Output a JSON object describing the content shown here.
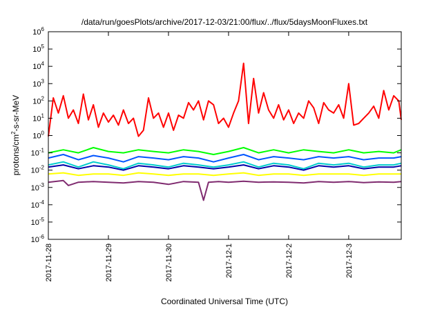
{
  "chart_data": {
    "type": "line",
    "title": "/data/run/goesPlots/archive/2017-12-03/21:00/flux/../flux/5daysMoonFluxes.txt",
    "xlabel": "Coordinated Universal Time (UTC)",
    "ylabel_parts": [
      "protons/cm",
      "2",
      "-s-sr-MeV"
    ],
    "yscale": "log",
    "ylim": [
      1e-06,
      1000000.0
    ],
    "xlim": [
      "2017-11-28T00:00",
      "2017-12-03T21:00"
    ],
    "grid": false,
    "legend": "none",
    "x_tick_labels": [
      "2017-11-28",
      "2017-11-29",
      "2017-11-30",
      "2017-12-1",
      "2017-12-2",
      "2017-12-3"
    ],
    "y_ticks": [
      {
        "value": 1e-06,
        "base": "10",
        "exp": "-6"
      },
      {
        "value": 1e-05,
        "base": "10",
        "exp": "-5"
      },
      {
        "value": 0.0001,
        "base": "10",
        "exp": "-4"
      },
      {
        "value": 0.001,
        "base": "10",
        "exp": "-3"
      },
      {
        "value": 0.01,
        "base": "10",
        "exp": "-2"
      },
      {
        "value": 0.1,
        "base": "10",
        "exp": "-1"
      },
      {
        "value": 1,
        "base": "10",
        "exp": "0"
      },
      {
        "value": 10,
        "base": "10",
        "exp": "1"
      },
      {
        "value": 100,
        "base": "10",
        "exp": "2"
      },
      {
        "value": 1000,
        "base": "10",
        "exp": "3"
      },
      {
        "value": 10000,
        "base": "10",
        "exp": "4"
      },
      {
        "value": 100000,
        "base": "10",
        "exp": "5"
      },
      {
        "value": 1000000,
        "base": "10",
        "exp": "6"
      }
    ],
    "series": [
      {
        "color": "#ff0000",
        "points": [
          [
            "2017-11-28T00:00",
            0.9
          ],
          [
            "2017-11-28T02:00",
            150
          ],
          [
            "2017-11-28T04:00",
            20
          ],
          [
            "2017-11-28T06:00",
            200
          ],
          [
            "2017-11-28T08:00",
            10
          ],
          [
            "2017-11-28T10:00",
            30
          ],
          [
            "2017-11-28T12:00",
            5
          ],
          [
            "2017-11-28T14:00",
            250
          ],
          [
            "2017-11-28T16:00",
            8
          ],
          [
            "2017-11-28T18:00",
            60
          ],
          [
            "2017-11-28T20:00",
            3
          ],
          [
            "2017-11-28T22:00",
            20
          ],
          [
            "2017-11-29T00:00",
            6
          ],
          [
            "2017-11-29T02:00",
            15
          ],
          [
            "2017-11-29T04:00",
            4
          ],
          [
            "2017-11-29T06:00",
            30
          ],
          [
            "2017-11-29T08:00",
            5
          ],
          [
            "2017-11-29T10:00",
            10
          ],
          [
            "2017-11-29T12:00",
            0.9
          ],
          [
            "2017-11-29T14:00",
            2
          ],
          [
            "2017-11-29T16:00",
            150
          ],
          [
            "2017-11-29T18:00",
            10
          ],
          [
            "2017-11-29T20:00",
            20
          ],
          [
            "2017-11-29T22:00",
            3
          ],
          [
            "2017-11-30T00:00",
            20
          ],
          [
            "2017-11-30T02:00",
            2
          ],
          [
            "2017-11-30T04:00",
            15
          ],
          [
            "2017-11-30T06:00",
            10
          ],
          [
            "2017-11-30T08:00",
            80
          ],
          [
            "2017-11-30T10:00",
            30
          ],
          [
            "2017-11-30T12:00",
            100
          ],
          [
            "2017-11-30T14:00",
            8
          ],
          [
            "2017-11-30T16:00",
            100
          ],
          [
            "2017-11-30T18:00",
            60
          ],
          [
            "2017-11-30T20:00",
            5
          ],
          [
            "2017-11-30T22:00",
            10
          ],
          [
            "2017-12-01T00:00",
            3
          ],
          [
            "2017-12-01T02:00",
            20
          ],
          [
            "2017-12-01T04:00",
            100
          ],
          [
            "2017-12-01T06:00",
            15000
          ],
          [
            "2017-12-01T08:00",
            5
          ],
          [
            "2017-12-01T10:00",
            2000
          ],
          [
            "2017-12-01T12:00",
            20
          ],
          [
            "2017-12-01T14:00",
            300
          ],
          [
            "2017-12-01T16:00",
            30
          ],
          [
            "2017-12-01T18:00",
            10
          ],
          [
            "2017-12-01T20:00",
            60
          ],
          [
            "2017-12-01T22:00",
            8
          ],
          [
            "2017-12-02T00:00",
            30
          ],
          [
            "2017-12-02T02:00",
            5
          ],
          [
            "2017-12-02T04:00",
            20
          ],
          [
            "2017-12-02T06:00",
            10
          ],
          [
            "2017-12-02T08:00",
            100
          ],
          [
            "2017-12-02T10:00",
            40
          ],
          [
            "2017-12-02T12:00",
            5
          ],
          [
            "2017-12-02T14:00",
            80
          ],
          [
            "2017-12-02T16:00",
            30
          ],
          [
            "2017-12-02T18:00",
            20
          ],
          [
            "2017-12-02T20:00",
            60
          ],
          [
            "2017-12-02T22:00",
            10
          ],
          [
            "2017-12-03T00:00",
            1000
          ],
          [
            "2017-12-03T02:00",
            4
          ],
          [
            "2017-12-03T04:00",
            5
          ],
          [
            "2017-12-03T06:00",
            10
          ],
          [
            "2017-12-03T08:00",
            20
          ],
          [
            "2017-12-03T10:00",
            50
          ],
          [
            "2017-12-03T12:00",
            10
          ],
          [
            "2017-12-03T14:00",
            400
          ],
          [
            "2017-12-03T16:00",
            30
          ],
          [
            "2017-12-03T18:00",
            200
          ],
          [
            "2017-12-03T20:00",
            100
          ],
          [
            "2017-12-03T21:00",
            8
          ]
        ]
      },
      {
        "color": "#00ff00",
        "points": [
          [
            "2017-11-28T00:00",
            0.1
          ],
          [
            "2017-11-28T06:00",
            0.15
          ],
          [
            "2017-11-28T12:00",
            0.1
          ],
          [
            "2017-11-28T18:00",
            0.2
          ],
          [
            "2017-11-29T00:00",
            0.12
          ],
          [
            "2017-11-29T06:00",
            0.1
          ],
          [
            "2017-11-29T12:00",
            0.15
          ],
          [
            "2017-11-29T18:00",
            0.12
          ],
          [
            "2017-11-30T00:00",
            0.1
          ],
          [
            "2017-11-30T06:00",
            0.15
          ],
          [
            "2017-11-30T12:00",
            0.12
          ],
          [
            "2017-11-30T18:00",
            0.08
          ],
          [
            "2017-12-01T00:00",
            0.12
          ],
          [
            "2017-12-01T06:00",
            0.2
          ],
          [
            "2017-12-01T12:00",
            0.1
          ],
          [
            "2017-12-01T18:00",
            0.15
          ],
          [
            "2017-12-02T00:00",
            0.1
          ],
          [
            "2017-12-02T06:00",
            0.15
          ],
          [
            "2017-12-02T12:00",
            0.12
          ],
          [
            "2017-12-02T18:00",
            0.1
          ],
          [
            "2017-12-03T00:00",
            0.15
          ],
          [
            "2017-12-03T06:00",
            0.1
          ],
          [
            "2017-12-03T12:00",
            0.12
          ],
          [
            "2017-12-03T18:00",
            0.1
          ],
          [
            "2017-12-03T21:00",
            0.15
          ]
        ]
      },
      {
        "color": "#00cccc",
        "points": [
          [
            "2017-11-28T00:00",
            0.02
          ],
          [
            "2017-11-28T06:00",
            0.03
          ],
          [
            "2017-11-28T12:00",
            0.015
          ],
          [
            "2017-11-28T18:00",
            0.03
          ],
          [
            "2017-11-29T00:00",
            0.02
          ],
          [
            "2017-11-29T06:00",
            0.012
          ],
          [
            "2017-11-29T12:00",
            0.025
          ],
          [
            "2017-11-29T18:00",
            0.02
          ],
          [
            "2017-11-30T00:00",
            0.015
          ],
          [
            "2017-11-30T06:00",
            0.025
          ],
          [
            "2017-11-30T12:00",
            0.02
          ],
          [
            "2017-11-30T18:00",
            0.015
          ],
          [
            "2017-12-01T00:00",
            0.02
          ],
          [
            "2017-12-01T06:00",
            0.03
          ],
          [
            "2017-12-01T12:00",
            0.015
          ],
          [
            "2017-12-01T18:00",
            0.025
          ],
          [
            "2017-12-02T00:00",
            0.02
          ],
          [
            "2017-12-02T06:00",
            0.012
          ],
          [
            "2017-12-02T12:00",
            0.025
          ],
          [
            "2017-12-02T18:00",
            0.02
          ],
          [
            "2017-12-03T00:00",
            0.025
          ],
          [
            "2017-12-03T06:00",
            0.015
          ],
          [
            "2017-12-03T12:00",
            0.02
          ],
          [
            "2017-12-03T18:00",
            0.02
          ],
          [
            "2017-12-03T21:00",
            0.025
          ]
        ]
      },
      {
        "color": "#0055ff",
        "points": [
          [
            "2017-11-28T00:00",
            0.05
          ],
          [
            "2017-11-28T06:00",
            0.08
          ],
          [
            "2017-11-28T12:00",
            0.04
          ],
          [
            "2017-11-28T18:00",
            0.07
          ],
          [
            "2017-11-29T00:00",
            0.05
          ],
          [
            "2017-11-29T06:00",
            0.03
          ],
          [
            "2017-11-29T12:00",
            0.06
          ],
          [
            "2017-11-29T18:00",
            0.05
          ],
          [
            "2017-11-30T00:00",
            0.04
          ],
          [
            "2017-11-30T06:00",
            0.06
          ],
          [
            "2017-11-30T12:00",
            0.05
          ],
          [
            "2017-11-30T18:00",
            0.03
          ],
          [
            "2017-12-01T00:00",
            0.05
          ],
          [
            "2017-12-01T06:00",
            0.08
          ],
          [
            "2017-12-01T12:00",
            0.04
          ],
          [
            "2017-12-01T18:00",
            0.06
          ],
          [
            "2017-12-02T00:00",
            0.05
          ],
          [
            "2017-12-02T06:00",
            0.04
          ],
          [
            "2017-12-02T12:00",
            0.06
          ],
          [
            "2017-12-02T18:00",
            0.05
          ],
          [
            "2017-12-03T00:00",
            0.06
          ],
          [
            "2017-12-03T06:00",
            0.04
          ],
          [
            "2017-12-03T12:00",
            0.05
          ],
          [
            "2017-12-03T18:00",
            0.05
          ],
          [
            "2017-12-03T21:00",
            0.06
          ]
        ]
      },
      {
        "color": "#0000aa",
        "points": [
          [
            "2017-11-28T00:00",
            0.015
          ],
          [
            "2017-11-28T06:00",
            0.02
          ],
          [
            "2017-11-28T12:00",
            0.012
          ],
          [
            "2017-11-28T18:00",
            0.018
          ],
          [
            "2017-11-29T00:00",
            0.015
          ],
          [
            "2017-11-29T06:00",
            0.01
          ],
          [
            "2017-11-29T12:00",
            0.018
          ],
          [
            "2017-11-29T18:00",
            0.015
          ],
          [
            "2017-11-30T00:00",
            0.012
          ],
          [
            "2017-11-30T06:00",
            0.018
          ],
          [
            "2017-11-30T12:00",
            0.015
          ],
          [
            "2017-11-30T18:00",
            0.012
          ],
          [
            "2017-12-01T00:00",
            0.015
          ],
          [
            "2017-12-01T06:00",
            0.02
          ],
          [
            "2017-12-01T12:00",
            0.012
          ],
          [
            "2017-12-01T18:00",
            0.018
          ],
          [
            "2017-12-02T00:00",
            0.015
          ],
          [
            "2017-12-02T06:00",
            0.01
          ],
          [
            "2017-12-02T12:00",
            0.018
          ],
          [
            "2017-12-02T18:00",
            0.015
          ],
          [
            "2017-12-03T00:00",
            0.018
          ],
          [
            "2017-12-03T06:00",
            0.012
          ],
          [
            "2017-12-03T12:00",
            0.015
          ],
          [
            "2017-12-03T18:00",
            0.015
          ],
          [
            "2017-12-03T21:00",
            0.018
          ]
        ]
      },
      {
        "color": "#ffff00",
        "points": [
          [
            "2017-11-28T00:00",
            0.006
          ],
          [
            "2017-11-28T06:00",
            0.007
          ],
          [
            "2017-11-28T12:00",
            0.005
          ],
          [
            "2017-11-28T18:00",
            0.006
          ],
          [
            "2017-11-29T00:00",
            0.006
          ],
          [
            "2017-11-29T06:00",
            0.005
          ],
          [
            "2017-11-29T12:00",
            0.007
          ],
          [
            "2017-11-29T18:00",
            0.006
          ],
          [
            "2017-11-30T00:00",
            0.005
          ],
          [
            "2017-11-30T06:00",
            0.006
          ],
          [
            "2017-11-30T12:00",
            0.006
          ],
          [
            "2017-11-30T18:00",
            0.005
          ],
          [
            "2017-12-01T00:00",
            0.006
          ],
          [
            "2017-12-01T06:00",
            0.007
          ],
          [
            "2017-12-01T12:00",
            0.005
          ],
          [
            "2017-12-01T18:00",
            0.006
          ],
          [
            "2017-12-02T00:00",
            0.006
          ],
          [
            "2017-12-02T06:00",
            0.005
          ],
          [
            "2017-12-02T12:00",
            0.006
          ],
          [
            "2017-12-02T18:00",
            0.006
          ],
          [
            "2017-12-03T00:00",
            0.006
          ],
          [
            "2017-12-03T06:00",
            0.005
          ],
          [
            "2017-12-03T12:00",
            0.006
          ],
          [
            "2017-12-03T18:00",
            0.006
          ],
          [
            "2017-12-03T21:00",
            0.006
          ]
        ]
      },
      {
        "color": "#7f2a6f",
        "points": [
          [
            "2017-11-28T00:00",
            0.002
          ],
          [
            "2017-11-28T06:00",
            0.0025
          ],
          [
            "2017-11-28T08:00",
            0.0013
          ],
          [
            "2017-11-28T12:00",
            0.002
          ],
          [
            "2017-11-28T18:00",
            0.0022
          ],
          [
            "2017-11-29T00:00",
            0.002
          ],
          [
            "2017-11-29T06:00",
            0.0018
          ],
          [
            "2017-11-29T12:00",
            0.0022
          ],
          [
            "2017-11-29T18:00",
            0.002
          ],
          [
            "2017-11-30T00:00",
            0.0015
          ],
          [
            "2017-11-30T06:00",
            0.0022
          ],
          [
            "2017-11-30T12:00",
            0.002
          ],
          [
            "2017-11-30T14:00",
            0.00018
          ],
          [
            "2017-11-30T16:00",
            0.002
          ],
          [
            "2017-11-30T20:00",
            0.0022
          ],
          [
            "2017-12-01T00:00",
            0.002
          ],
          [
            "2017-12-01T06:00",
            0.0023
          ],
          [
            "2017-12-01T12:00",
            0.002
          ],
          [
            "2017-12-01T18:00",
            0.0021
          ],
          [
            "2017-12-02T00:00",
            0.002
          ],
          [
            "2017-12-02T06:00",
            0.0018
          ],
          [
            "2017-12-02T12:00",
            0.0022
          ],
          [
            "2017-12-02T18:00",
            0.002
          ],
          [
            "2017-12-03T00:00",
            0.0022
          ],
          [
            "2017-12-03T06:00",
            0.0019
          ],
          [
            "2017-12-03T12:00",
            0.0021
          ],
          [
            "2017-12-03T18:00",
            0.002
          ],
          [
            "2017-12-03T21:00",
            0.0022
          ]
        ]
      }
    ]
  }
}
